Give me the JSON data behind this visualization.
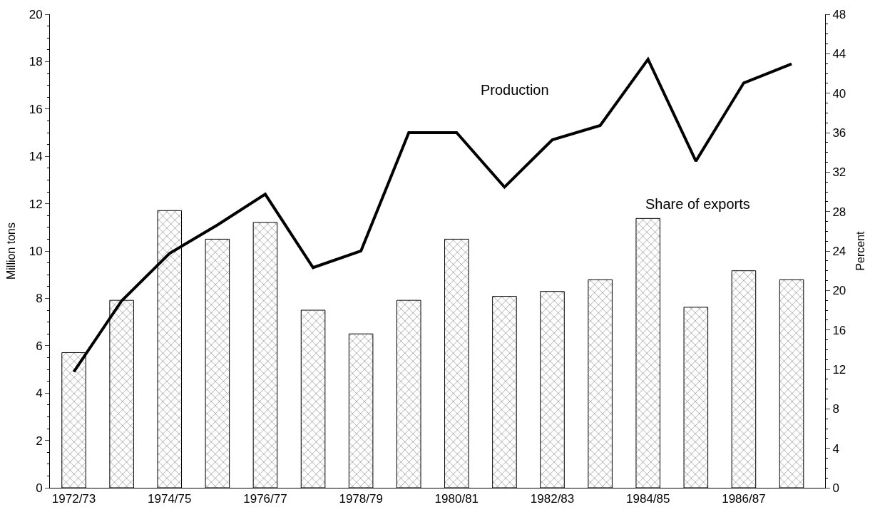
{
  "chart_data": {
    "type": "bar",
    "ylabel": "Million tons",
    "y2label": "Percent",
    "categories": [
      "1972/73",
      null,
      "1974/75",
      null,
      "1976/77",
      null,
      "1978/79",
      null,
      "1980/81",
      null,
      "1982/83",
      null,
      "1984/85",
      null,
      "1986/87",
      null
    ],
    "series": [
      {
        "name": "Share of exports",
        "axis": "y2",
        "color": "#000000",
        "values": [
          13.7,
          19.0,
          28.1,
          25.2,
          26.9,
          18.0,
          15.6,
          19.0,
          25.2,
          19.4,
          19.9,
          21.1,
          27.3,
          18.3,
          22.0,
          21.1
        ]
      },
      {
        "name": "Production",
        "type": "line",
        "color": "#000000",
        "values": [
          4.9,
          7.9,
          9.9,
          11.1,
          12.4,
          9.3,
          10.0,
          15.0,
          15.0,
          12.7,
          14.7,
          15.3,
          18.1,
          13.8,
          17.1,
          17.9
        ]
      }
    ],
    "ylim": [
      0,
      20
    ],
    "yticks": [
      0,
      2,
      4,
      6,
      8,
      10,
      12,
      14,
      16,
      18,
      20
    ],
    "y2lim": [
      0,
      48
    ],
    "y2ticks": [
      0,
      4,
      8,
      12,
      16,
      20,
      24,
      28,
      32,
      36,
      40,
      44,
      48
    ],
    "legend": false,
    "marker": "none",
    "line_style": "solid"
  }
}
